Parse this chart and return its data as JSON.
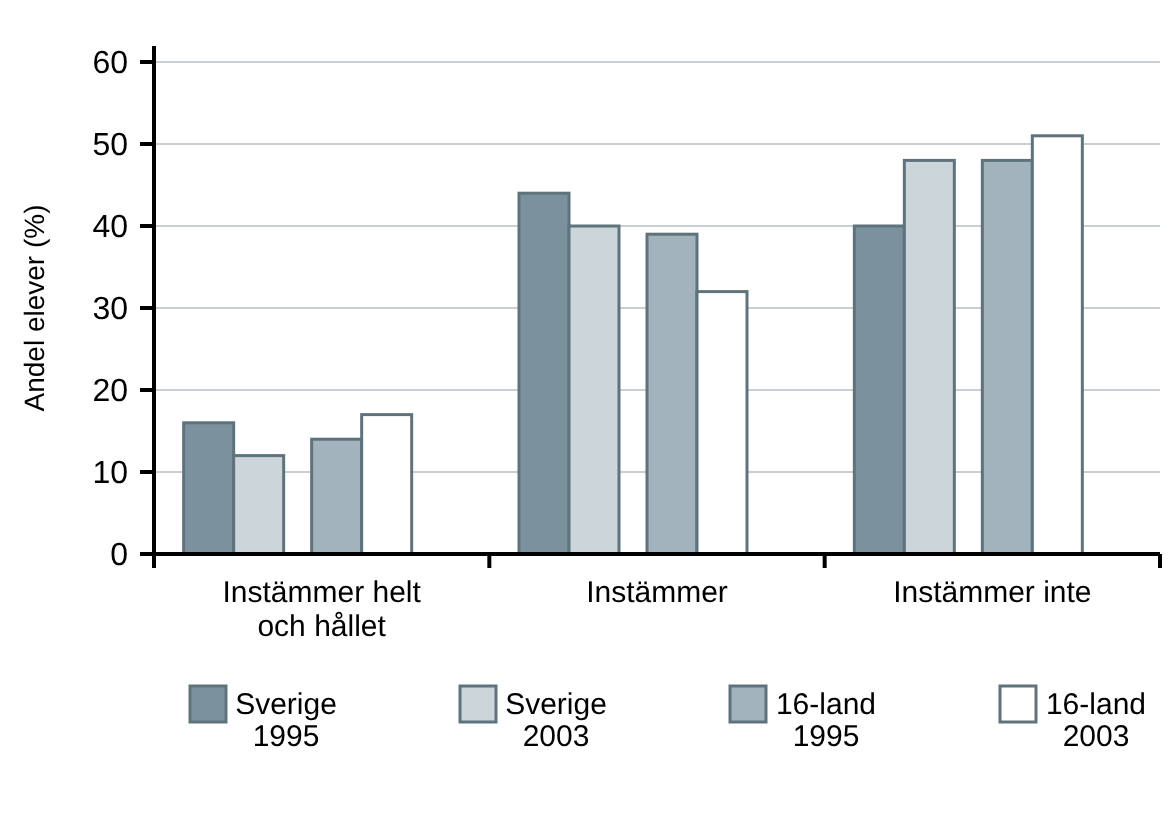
{
  "chart_data": {
    "type": "bar",
    "ylabel": "Andel elever (%)",
    "categories": [
      "Instämmer helt och hållet",
      "Instämmer",
      "Instämmer inte"
    ],
    "series": [
      {
        "name": "Sverige 1995",
        "color": "#7a929e",
        "values": [
          16,
          44,
          40
        ]
      },
      {
        "name": "Sverige 2003",
        "color": "#cbd5da",
        "values": [
          12,
          40,
          48
        ]
      },
      {
        "name": "16-land 1995",
        "color": "#a2b3bb",
        "values": [
          14,
          39,
          48
        ]
      },
      {
        "name": "16-land 2003",
        "color": "#ffffff",
        "values": [
          17,
          32,
          51
        ]
      }
    ],
    "ylim": [
      0,
      60
    ],
    "yticks": [
      0,
      10,
      20,
      30,
      40,
      50,
      60
    ],
    "grid": "y",
    "legend": "bottom"
  }
}
